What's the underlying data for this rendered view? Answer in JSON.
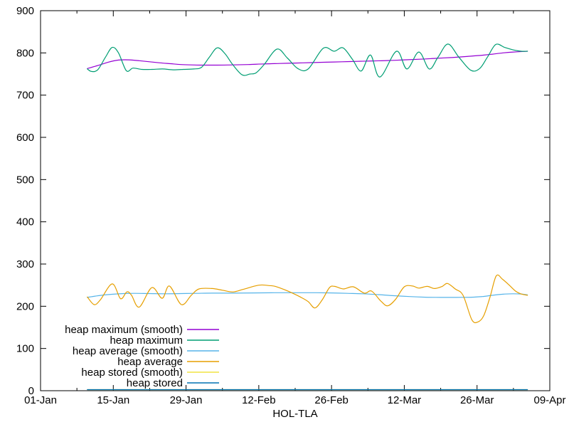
{
  "chart_data": {
    "type": "line",
    "title": "",
    "xlabel": "HOL-TLA",
    "ylabel": "",
    "grid": false,
    "background": "#ffffff",
    "axis_color": "#000000",
    "x_axis": {
      "range_days": [
        0,
        98
      ],
      "tick_days": [
        0,
        14,
        28,
        42,
        56,
        70,
        84,
        98
      ],
      "tick_labels": [
        "01-Jan",
        "15-Jan",
        "29-Jan",
        "12-Feb",
        "26-Feb",
        "12-Mar",
        "26-Mar",
        "09-Apr"
      ],
      "minor_tick_days": [
        7,
        21,
        35,
        49,
        63,
        77,
        91
      ]
    },
    "y_axis": {
      "ylim": [
        0,
        900
      ],
      "tick_values": [
        0,
        100,
        200,
        300,
        400,
        500,
        600,
        700,
        800,
        900
      ],
      "tick_labels": [
        "0",
        "100",
        "200",
        "300",
        "400",
        "500",
        "600",
        "700",
        "800",
        "900"
      ]
    },
    "legend": {
      "position": "bottom-left-inside",
      "entries": [
        "heap maximum (smooth)",
        "heap maximum",
        "heap average (smooth)",
        "heap average",
        "heap stored (smooth)",
        "heap stored"
      ]
    },
    "series": [
      {
        "name": "heap maximum (smooth)",
        "color": "#9400D3",
        "points": [
          [
            9,
            763
          ],
          [
            11,
            770
          ],
          [
            13,
            778
          ],
          [
            15,
            783
          ],
          [
            17,
            783.5
          ],
          [
            19,
            781.5
          ],
          [
            21,
            779
          ],
          [
            23,
            776.5
          ],
          [
            25,
            774.5
          ],
          [
            27,
            772.5
          ],
          [
            29,
            771.5
          ],
          [
            31,
            771
          ],
          [
            34,
            771
          ],
          [
            37,
            771.5
          ],
          [
            40,
            772.5
          ],
          [
            43,
            774
          ],
          [
            46,
            775
          ],
          [
            49,
            776
          ],
          [
            52,
            777
          ],
          [
            55,
            778
          ],
          [
            58,
            779
          ],
          [
            61,
            780
          ],
          [
            64,
            781
          ],
          [
            67,
            782
          ],
          [
            70,
            783.5
          ],
          [
            73,
            785
          ],
          [
            76,
            787
          ],
          [
            79,
            789
          ],
          [
            82,
            791.5
          ],
          [
            85,
            794.5
          ],
          [
            87,
            797
          ],
          [
            89,
            800
          ],
          [
            91,
            802
          ],
          [
            93,
            803.5
          ],
          [
            93.7,
            804
          ]
        ]
      },
      {
        "name": "heap maximum",
        "color": "#009E73",
        "points": [
          [
            9,
            762
          ],
          [
            9.8,
            756
          ],
          [
            11,
            760
          ],
          [
            12.5,
            790
          ],
          [
            13.8,
            813
          ],
          [
            15,
            800
          ],
          [
            16.5,
            758
          ],
          [
            17.8,
            764
          ],
          [
            19.5,
            761
          ],
          [
            21.5,
            761
          ],
          [
            23.5,
            762
          ],
          [
            25.5,
            760
          ],
          [
            27.5,
            761
          ],
          [
            29.5,
            762
          ],
          [
            31,
            766
          ],
          [
            32.5,
            790
          ],
          [
            34,
            812
          ],
          [
            35.5,
            798
          ],
          [
            37,
            772
          ],
          [
            38.8,
            748
          ],
          [
            40.3,
            750
          ],
          [
            41.5,
            753
          ],
          [
            43,
            772
          ],
          [
            45.5,
            809
          ],
          [
            47.5,
            788
          ],
          [
            49.5,
            763
          ],
          [
            51.5,
            762
          ],
          [
            54.4,
            811
          ],
          [
            56.5,
            804
          ],
          [
            58.2,
            812
          ],
          [
            60,
            785
          ],
          [
            61.7,
            757
          ],
          [
            63.5,
            795
          ],
          [
            65.3,
            743
          ],
          [
            68.5,
            804
          ],
          [
            70.5,
            762
          ],
          [
            72.8,
            802
          ],
          [
            74.8,
            762
          ],
          [
            76.5,
            790
          ],
          [
            78.4,
            821
          ],
          [
            80.5,
            790
          ],
          [
            82.8,
            759
          ],
          [
            84.5,
            763
          ],
          [
            86,
            790
          ],
          [
            87.6,
            820
          ],
          [
            89.3,
            813
          ],
          [
            91,
            807
          ],
          [
            92.5,
            804
          ],
          [
            93.7,
            804
          ]
        ]
      },
      {
        "name": "heap average (smooth)",
        "color": "#56B4E9",
        "points": [
          [
            9,
            221
          ],
          [
            10.5,
            224
          ],
          [
            12,
            226.5
          ],
          [
            14,
            228.5
          ],
          [
            16,
            230
          ],
          [
            18,
            230.5
          ],
          [
            21,
            230
          ],
          [
            24,
            229.5
          ],
          [
            27,
            230
          ],
          [
            30,
            230.5
          ],
          [
            33,
            231
          ],
          [
            37,
            231
          ],
          [
            41,
            231.5
          ],
          [
            45,
            232
          ],
          [
            49,
            232
          ],
          [
            53,
            232
          ],
          [
            56,
            231.5
          ],
          [
            59,
            230.5
          ],
          [
            62,
            229.5
          ],
          [
            65,
            227.5
          ],
          [
            68,
            225
          ],
          [
            71,
            223
          ],
          [
            74,
            221.5
          ],
          [
            77,
            221
          ],
          [
            80,
            221
          ],
          [
            83,
            221.5
          ],
          [
            85,
            223
          ],
          [
            87,
            226
          ],
          [
            89,
            228.5
          ],
          [
            91,
            229.5
          ],
          [
            92.5,
            229
          ],
          [
            93.7,
            227
          ]
        ]
      },
      {
        "name": "heap average",
        "color": "#E69F00",
        "points": [
          [
            9,
            222
          ],
          [
            10.3,
            204
          ],
          [
            11.5,
            215
          ],
          [
            13.8,
            253
          ],
          [
            15.4,
            218
          ],
          [
            16.6,
            234
          ],
          [
            17.5,
            226
          ],
          [
            19,
            198
          ],
          [
            21.4,
            244
          ],
          [
            23.4,
            219
          ],
          [
            24.8,
            248
          ],
          [
            27.1,
            204
          ],
          [
            29,
            226
          ],
          [
            30.5,
            241
          ],
          [
            33,
            242
          ],
          [
            35,
            238
          ],
          [
            37,
            234
          ],
          [
            39,
            240
          ],
          [
            42,
            250
          ],
          [
            44,
            249
          ],
          [
            45.2,
            247
          ],
          [
            47,
            239
          ],
          [
            48.5,
            231
          ],
          [
            50,
            222
          ],
          [
            51.5,
            211
          ],
          [
            52.8,
            196
          ],
          [
            54.2,
            215
          ],
          [
            55.6,
            244
          ],
          [
            56.6,
            247
          ],
          [
            58.3,
            241
          ],
          [
            60.2,
            246
          ],
          [
            62.3,
            231
          ],
          [
            63.7,
            236
          ],
          [
            65.5,
            212
          ],
          [
            66.8,
            201
          ],
          [
            68.3,
            216
          ],
          [
            70,
            246
          ],
          [
            71.6,
            248
          ],
          [
            72.8,
            243
          ],
          [
            74.4,
            247
          ],
          [
            75.8,
            242
          ],
          [
            77.3,
            247
          ],
          [
            78.3,
            254
          ],
          [
            79.8,
            241
          ],
          [
            81.3,
            226
          ],
          [
            83,
            168
          ],
          [
            84.2,
            163
          ],
          [
            85.3,
            178
          ],
          [
            86.5,
            222
          ],
          [
            87.7,
            272
          ],
          [
            88.9,
            264
          ],
          [
            90.2,
            250
          ],
          [
            91.4,
            236
          ],
          [
            92.5,
            229
          ],
          [
            93.7,
            226
          ]
        ]
      },
      {
        "name": "heap stored (smooth)",
        "color": "#F0E442",
        "points": [
          [
            9,
            2.5
          ],
          [
            30,
            2.5
          ],
          [
            60,
            2.5
          ],
          [
            93.7,
            2.5
          ]
        ]
      },
      {
        "name": "heap stored",
        "color": "#0072B2",
        "points": [
          [
            9,
            2.5
          ],
          [
            30,
            2.5
          ],
          [
            60,
            2.5
          ],
          [
            93.7,
            2.5
          ]
        ]
      }
    ]
  }
}
